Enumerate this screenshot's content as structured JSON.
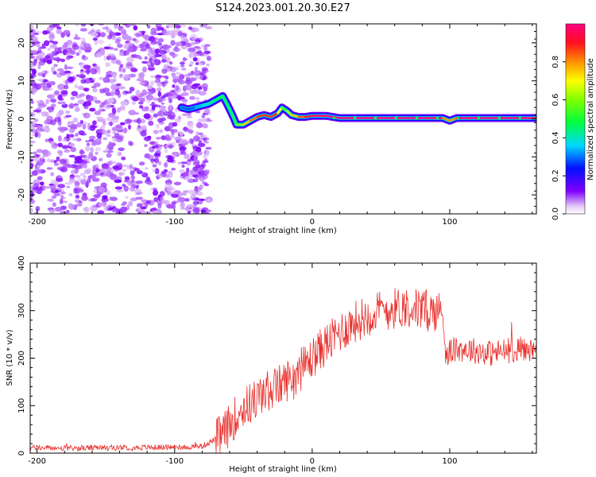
{
  "figure": {
    "title": "S124.2023.001.20.30.E27"
  },
  "chart_data": [
    {
      "type": "heatmap",
      "title": "S124.2023.001.20.30.E27",
      "xlabel": "Height of straight line (km)",
      "ylabel": "Frequency (Hz)",
      "xlim": [
        -205,
        163
      ],
      "ylim": [
        -25,
        25
      ],
      "xticks": [
        -200,
        -100,
        0,
        100
      ],
      "yticks": [
        -20,
        -10,
        0,
        10,
        20
      ],
      "colorbar": {
        "label": "Normalized spectral amplitude",
        "range": [
          0,
          1
        ],
        "ticks": [
          "0.0",
          "0.2",
          "0.4",
          "0.6",
          "0.8"
        ]
      },
      "noise_region_x": [
        -205,
        -75
      ],
      "ridge": {
        "x": [
          -95,
          -90,
          -85,
          -80,
          -75,
          -70,
          -65,
          -62,
          -58,
          -55,
          -50,
          -45,
          -40,
          -35,
          -30,
          -25,
          -22,
          -18,
          -15,
          -10,
          -5,
          0,
          10,
          20,
          40,
          60,
          80,
          95,
          100,
          105,
          120,
          140,
          163
        ],
        "frequency": [
          3,
          2.5,
          3,
          3.5,
          4,
          5,
          6,
          4,
          1,
          -1.5,
          -1.5,
          -0.5,
          0.5,
          1,
          0.5,
          1.5,
          3,
          2,
          1,
          0.5,
          0.5,
          0.8,
          0.8,
          0.2,
          0.2,
          0.2,
          0.2,
          0.2,
          -0.5,
          0.2,
          0.2,
          0.2,
          0.2
        ],
        "amplitude": [
          0.3,
          0.25,
          0.3,
          0.35,
          0.4,
          0.45,
          0.5,
          0.45,
          0.5,
          0.5,
          0.7,
          0.8,
          0.85,
          0.9,
          0.85,
          0.9,
          0.5,
          0.6,
          0.7,
          0.8,
          0.9,
          0.95,
          1.0,
          1.0,
          1.0,
          1.0,
          1.0,
          1.0,
          0.6,
          1.0,
          1.0,
          1.0,
          1.0
        ]
      }
    },
    {
      "type": "line",
      "xlabel": "Height of straight line (km)",
      "ylabel": "SNR (10 * v/v)",
      "xlim": [
        -205,
        163
      ],
      "ylim": [
        0,
        400
      ],
      "xticks": [
        -200,
        -100,
        0,
        100
      ],
      "yticks": [
        0,
        100,
        200,
        300,
        400
      ],
      "series": [
        {
          "color": "#e8302c",
          "x": [
            -205,
            -180,
            -150,
            -120,
            -90,
            -80,
            -75,
            -70,
            -65,
            -60,
            -55,
            -50,
            -45,
            -40,
            -35,
            -30,
            -25,
            -20,
            -15,
            -10,
            -5,
            0,
            5,
            10,
            15,
            20,
            25,
            30,
            40,
            50,
            60,
            70,
            80,
            90,
            95,
            97,
            100,
            110,
            120,
            130,
            140,
            150,
            160,
            163
          ],
          "y": [
            12,
            10,
            11,
            12,
            13,
            15,
            22,
            30,
            40,
            60,
            80,
            95,
            105,
            115,
            125,
            135,
            140,
            150,
            160,
            170,
            185,
            200,
            215,
            230,
            240,
            255,
            265,
            275,
            290,
            300,
            305,
            310,
            300,
            300,
            295,
            210,
            215,
            220,
            215,
            210,
            215,
            220,
            215,
            210
          ]
        }
      ]
    }
  ]
}
